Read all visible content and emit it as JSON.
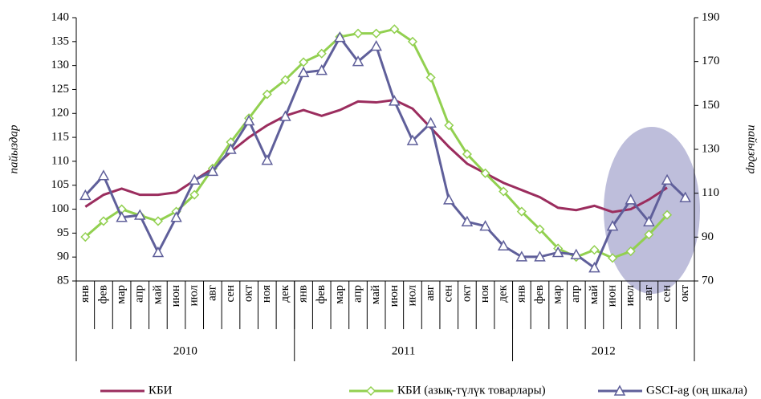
{
  "chart_data": {
    "type": "line",
    "ylabel": "пайыздар",
    "y2label": "пайыздар",
    "categories": [
      "янв",
      "фев",
      "мар",
      "апр",
      "май",
      "июн",
      "июл",
      "авг",
      "сен",
      "окт",
      "ноя",
      "дек",
      "янв",
      "фев",
      "мар",
      "апр",
      "май",
      "июн",
      "июл",
      "авг",
      "сен",
      "окт",
      "ноя",
      "дек",
      "янв",
      "фев",
      "мар",
      "апр",
      "май",
      "июн",
      "июл",
      "авг",
      "сен",
      "окт"
    ],
    "groups": [
      {
        "label": "2010",
        "count": 12
      },
      {
        "label": "2011",
        "count": 12
      },
      {
        "label": "2012",
        "count": 10
      }
    ],
    "ylim": [
      85,
      140
    ],
    "yticks": [
      85,
      90,
      95,
      100,
      105,
      110,
      115,
      120,
      125,
      130,
      135,
      140
    ],
    "y2lim": [
      70,
      190
    ],
    "y2ticks": [
      70,
      90,
      110,
      130,
      150,
      170,
      190
    ],
    "series": [
      {
        "name": "КБИ",
        "color": "#9b2d5e",
        "marker": "none",
        "values": [
          100.5,
          103,
          104.3,
          103,
          103,
          103.5,
          106,
          108.5,
          112,
          115,
          117.5,
          119.5,
          120.7,
          119.5,
          120.7,
          122.5,
          122.3,
          122.8,
          121,
          117,
          113,
          109.5,
          107.5,
          105.5,
          104,
          102.5,
          100.3,
          99.8,
          100.7,
          99.4,
          100,
          102,
          104.5,
          null
        ]
      },
      {
        "name": "КБИ (азық-түлүк товарлары)",
        "color": "#92d050",
        "marker": "diamond",
        "values": [
          94.2,
          97.5,
          100,
          98.7,
          97.5,
          99.5,
          103,
          108.5,
          114,
          119,
          124,
          127,
          130.7,
          132.5,
          136,
          136.7,
          136.7,
          137.6,
          135,
          127.5,
          117.5,
          111.5,
          107.5,
          103.7,
          99.5,
          95.8,
          91.8,
          90,
          91.5,
          89.8,
          91.2,
          94.7,
          98.8,
          null
        ]
      },
      {
        "name": "GSCI-ag (оң шкала)",
        "color": "#5f5f9a",
        "marker": "triangle",
        "axis": "y2",
        "values": [
          109,
          118,
          99,
          100,
          83,
          99,
          116,
          120,
          130,
          143,
          125,
          145,
          165,
          166,
          181,
          170,
          177,
          152,
          134,
          142,
          107,
          97,
          95,
          86,
          81,
          81,
          83,
          82,
          76,
          95,
          107,
          97,
          116,
          108
        ]
      }
    ]
  }
}
